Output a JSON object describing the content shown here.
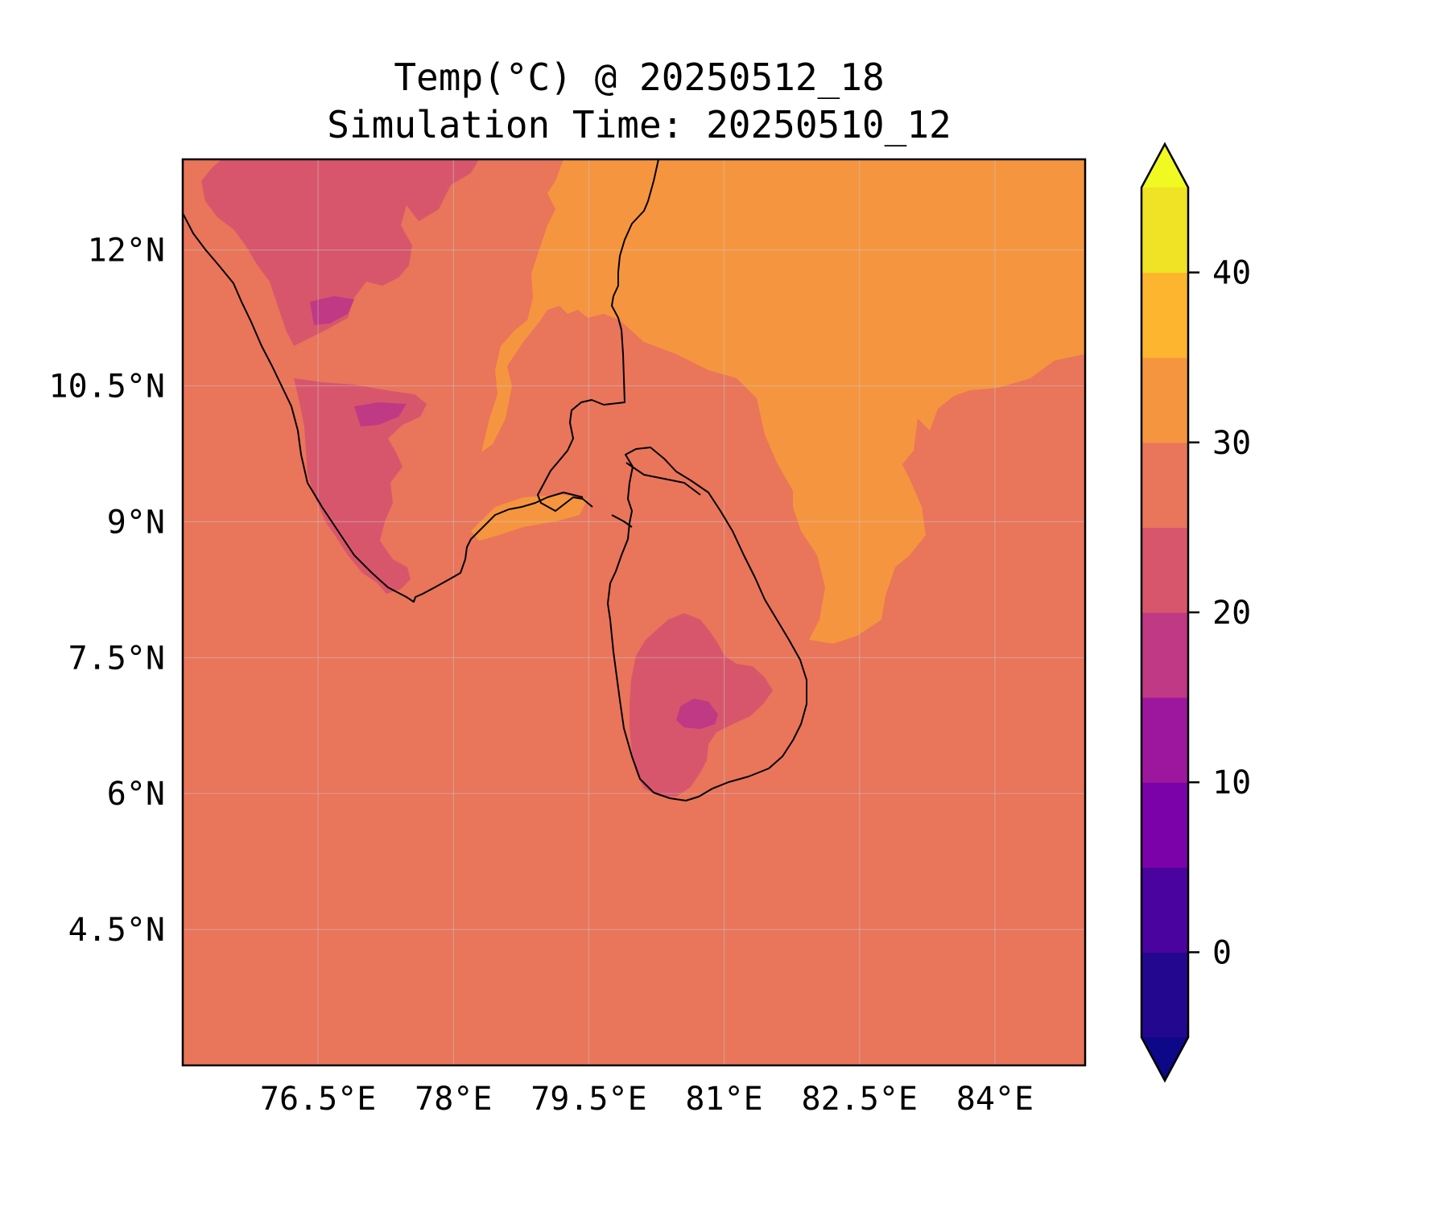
{
  "title": {
    "line1": "Temp(°C) @ 20250512_18",
    "line2": "Simulation Time: 20250510_12"
  },
  "map": {
    "projection": "PlateCarree",
    "lon_range": [
      75.0,
      85.0
    ],
    "lat_range": [
      3.0,
      13.0
    ],
    "x_ticks": [
      {
        "value": 76.5,
        "label": "76.5°E"
      },
      {
        "value": 78.0,
        "label": "78°E"
      },
      {
        "value": 79.5,
        "label": "79.5°E"
      },
      {
        "value": 81.0,
        "label": "81°E"
      },
      {
        "value": 82.5,
        "label": "82.5°E"
      },
      {
        "value": 84.0,
        "label": "84°E"
      }
    ],
    "y_ticks": [
      {
        "value": 12.0,
        "label": "12°N"
      },
      {
        "value": 10.5,
        "label": "10.5°N"
      },
      {
        "value": 9.0,
        "label": "9°N"
      },
      {
        "value": 7.5,
        "label": "7.5°N"
      },
      {
        "value": 6.0,
        "label": "6°N"
      },
      {
        "value": 4.5,
        "label": "4.5°N"
      }
    ],
    "gridlines": true,
    "background_band": "25-30",
    "regions": [
      {
        "name": "bay-of-bengal-warm",
        "band": "30-35"
      },
      {
        "name": "west-ghats-cool",
        "band": "20-25"
      },
      {
        "name": "palani-hills-cool",
        "band": "20-25"
      },
      {
        "name": "sri-lanka-highlands-cool",
        "band": "20-25"
      },
      {
        "name": "sri-lanka-peak-cold",
        "band": "15-20"
      },
      {
        "name": "nilgiri-peak-cold",
        "band": "15-20"
      }
    ]
  },
  "colorbar": {
    "colormap": "plasma",
    "extend": "both",
    "levels": [
      -5,
      0,
      5,
      10,
      15,
      20,
      25,
      30,
      35,
      40,
      45
    ],
    "band_colors": [
      "#24078f",
      "#4a039f",
      "#7b02a8",
      "#9d179e",
      "#bf3984",
      "#d8566b",
      "#e9755b",
      "#f6953f",
      "#fdb42f",
      "#f0e224"
    ],
    "under_color": "#0d0887",
    "over_color": "#f0f921",
    "ticks": [
      {
        "value": 0,
        "label": "0"
      },
      {
        "value": 10,
        "label": "10"
      },
      {
        "value": 20,
        "label": "20"
      },
      {
        "value": 30,
        "label": "30"
      },
      {
        "value": 40,
        "label": "40"
      }
    ]
  }
}
